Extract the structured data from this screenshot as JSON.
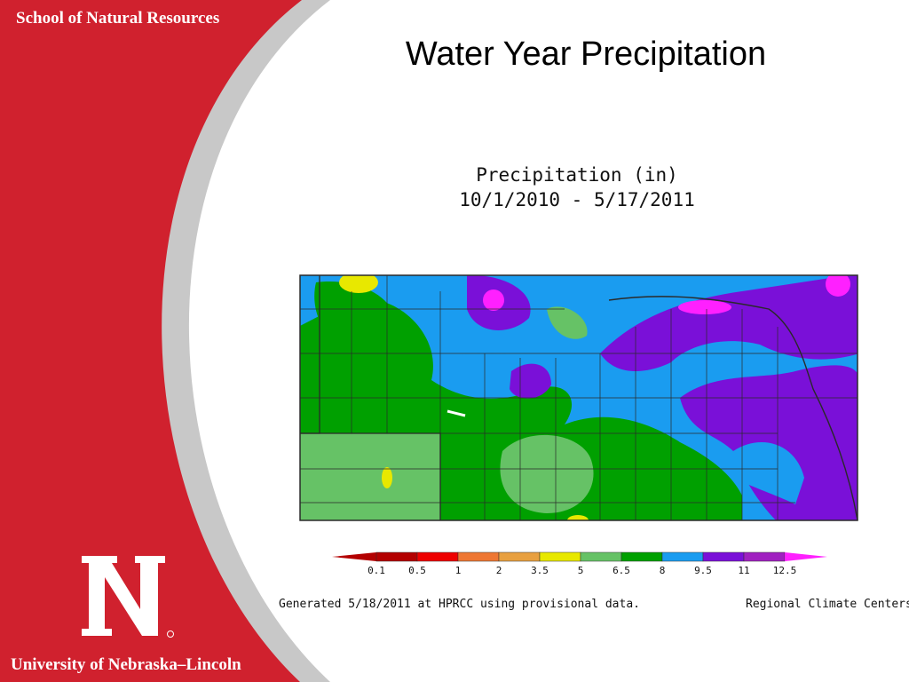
{
  "slide": {
    "school": "School of Natural Resources",
    "university": "University of Nebraska–Lincoln",
    "title": "Water Year Precipitation",
    "logo_icon": "nebraska-n-logo-icon",
    "accent_color": "#d0212e"
  },
  "map": {
    "title_line1": "Precipitation (in)",
    "title_line2": "10/1/2010 - 5/17/2011",
    "region": "Nebraska"
  },
  "legend": {
    "labels": [
      "0.1",
      "0.5",
      "1",
      "2",
      "3.5",
      "5",
      "6.5",
      "8",
      "9.5",
      "11",
      "12.5"
    ],
    "colors": [
      "#b30000",
      "#ee0000",
      "#ee7733",
      "#e8a040",
      "#e8e800",
      "#66c266",
      "#00a000",
      "#1a9cf0",
      "#7a10d8",
      "#a020c0",
      "#ff20ff"
    ]
  },
  "footer": {
    "generated": "Generated 5/18/2011 at HPRCC using provisional data.",
    "credit": "Regional Climate Centers"
  }
}
